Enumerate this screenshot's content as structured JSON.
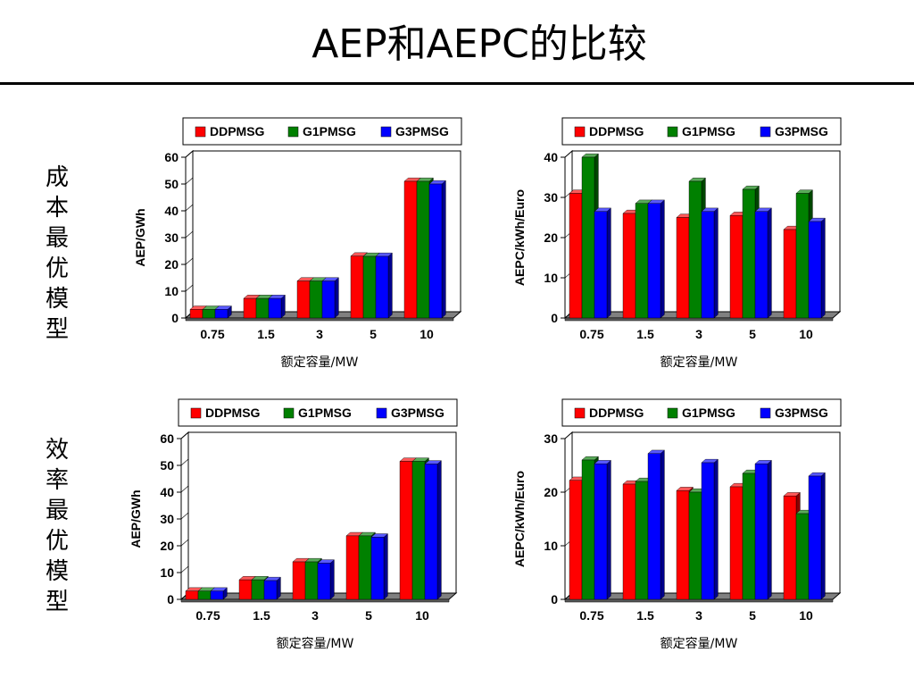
{
  "slide": {
    "title": "AEP和AEPC的比较",
    "row_labels": [
      "成本最优模型",
      "效率最优模型"
    ]
  },
  "colors": {
    "DDPMSG": "#ff0000",
    "G1PMSG": "#008000",
    "G3PMSG": "#0000ff",
    "floor": "#808080"
  },
  "chart_data": [
    {
      "type": "bar",
      "legend_position": "top",
      "categories": [
        "0.75",
        "1.5",
        "3",
        "5",
        "10"
      ],
      "series": [
        {
          "name": "DDPMSG",
          "values": [
            3.2,
            7.3,
            13.8,
            23.1,
            51
          ]
        },
        {
          "name": "G1PMSG",
          "values": [
            3.2,
            7.3,
            13.8,
            23.0,
            51
          ]
        },
        {
          "name": "G3PMSG",
          "values": [
            3.2,
            7.3,
            13.8,
            23.0,
            50
          ]
        }
      ],
      "xlabel": "额定容量/MW",
      "ylabel": "AEP/GWh",
      "ylim": [
        0,
        60
      ],
      "yticks": [
        0,
        10,
        20,
        30,
        40,
        50,
        60
      ]
    },
    {
      "type": "bar",
      "legend_position": "top",
      "categories": [
        "0.75",
        "1.5",
        "3",
        "5",
        "10"
      ],
      "series": [
        {
          "name": "DDPMSG",
          "values": [
            31,
            26,
            25,
            25.5,
            22
          ]
        },
        {
          "name": "G1PMSG",
          "values": [
            40,
            28.5,
            34,
            32,
            31
          ]
        },
        {
          "name": "G3PMSG",
          "values": [
            26.5,
            28.5,
            26.5,
            26.5,
            24
          ]
        }
      ],
      "xlabel": "额定容量/MW",
      "ylabel": "AEPC/kWh/Euro",
      "ylim": [
        0,
        40
      ],
      "yticks": [
        0,
        10,
        20,
        30,
        40
      ]
    },
    {
      "type": "bar",
      "legend_position": "top",
      "categories": [
        "0.75",
        "1.5",
        "3",
        "5",
        "10"
      ],
      "series": [
        {
          "name": "DDPMSG",
          "values": [
            3.1,
            7.3,
            14,
            23.7,
            51.5
          ]
        },
        {
          "name": "G1PMSG",
          "values": [
            3.1,
            7.3,
            14,
            23.7,
            51.5
          ]
        },
        {
          "name": "G3PMSG",
          "values": [
            3.1,
            7.0,
            13.5,
            23.2,
            50.5
          ]
        }
      ],
      "xlabel": "额定容量/MW",
      "ylabel": "AEP/GWh",
      "ylim": [
        0,
        60
      ],
      "yticks": [
        0,
        10,
        20,
        30,
        40,
        50,
        60
      ]
    },
    {
      "type": "bar",
      "legend_position": "top",
      "categories": [
        "0.75",
        "1.5",
        "3",
        "5",
        "10"
      ],
      "series": [
        {
          "name": "DDPMSG",
          "values": [
            22.2,
            21.5,
            20.3,
            21,
            19.3
          ]
        },
        {
          "name": "G1PMSG",
          "values": [
            26,
            22,
            20,
            23.5,
            16
          ]
        },
        {
          "name": "G3PMSG",
          "values": [
            25.3,
            27.2,
            25.5,
            25.3,
            23
          ]
        }
      ],
      "xlabel": "额定容量/MW",
      "ylabel": "AEPC/kWh/Euro",
      "ylim": [
        0,
        30
      ],
      "yticks": [
        0,
        10,
        20,
        30
      ]
    }
  ]
}
